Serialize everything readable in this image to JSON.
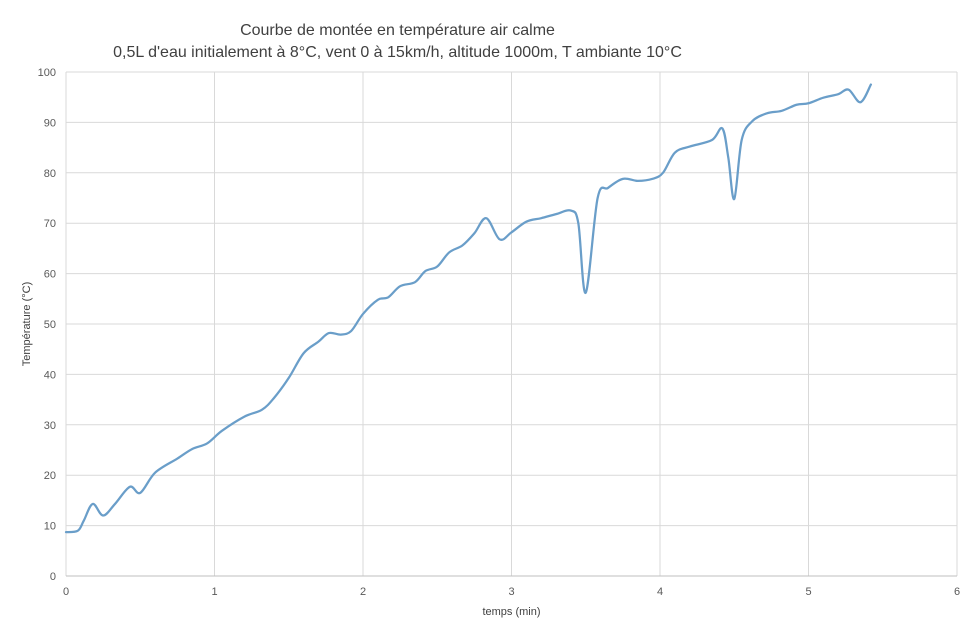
{
  "chart_data": {
    "type": "line",
    "title": "Courbe de montée en température air calme",
    "subtitle": "0,5L d'eau initialement à 8°C, vent 0 à 15km/h, altitude 1000m, T ambiante 10°C",
    "xlabel": "temps (min)",
    "ylabel": "Température  (°C)",
    "xlim": [
      0,
      6
    ],
    "ylim": [
      0,
      100
    ],
    "xticks": [
      0,
      1,
      2,
      3,
      4,
      5,
      6
    ],
    "yticks": [
      0,
      10,
      20,
      30,
      40,
      50,
      60,
      70,
      80,
      90,
      100
    ],
    "grid": true,
    "legend": "none",
    "series": [
      {
        "color": "#6a9ec9",
        "x": [
          0,
          0.08,
          0.12,
          0.18,
          0.25,
          0.33,
          0.43,
          0.5,
          0.6,
          0.75,
          0.85,
          0.95,
          1.05,
          1.2,
          1.32,
          1.4,
          1.5,
          1.6,
          1.7,
          1.77,
          1.85,
          1.92,
          2.0,
          2.1,
          2.17,
          2.25,
          2.35,
          2.42,
          2.5,
          2.58,
          2.67,
          2.75,
          2.83,
          2.92,
          3.0,
          3.1,
          3.2,
          3.3,
          3.4,
          3.45,
          3.5,
          3.58,
          3.65,
          3.75,
          3.85,
          3.95,
          4.02,
          4.1,
          4.2,
          4.35,
          4.42,
          4.46,
          4.5,
          4.55,
          4.62,
          4.72,
          4.82,
          4.92,
          5.0,
          5.1,
          5.2,
          5.27,
          5.35,
          5.42
        ],
        "y": [
          8.7,
          9.0,
          11.0,
          14.3,
          12.0,
          14.3,
          17.7,
          16.5,
          20.5,
          23.3,
          25.2,
          26.3,
          28.8,
          31.6,
          33.0,
          35.3,
          39.3,
          44.2,
          46.5,
          48.2,
          47.9,
          48.6,
          52.0,
          54.8,
          55.3,
          57.5,
          58.3,
          60.5,
          61.4,
          64.2,
          65.6,
          68.0,
          71.0,
          66.8,
          68.2,
          70.3,
          71.0,
          71.8,
          72.5,
          70.0,
          56.2,
          75.0,
          77.0,
          78.8,
          78.4,
          78.8,
          80.0,
          84.0,
          85.2,
          86.5,
          88.8,
          83.0,
          74.8,
          86.5,
          90.2,
          91.8,
          92.3,
          93.5,
          93.8,
          94.9,
          95.6,
          96.5,
          94.0,
          97.5
        ]
      }
    ]
  }
}
